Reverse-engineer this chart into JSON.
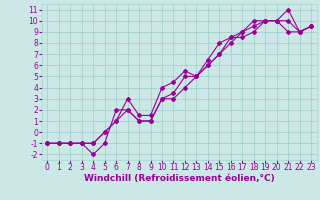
{
  "xlabel": "Windchill (Refroidissement éolien,°C)",
  "ylabel": "",
  "bg_color": "#cce8e6",
  "grid_color": "#a8d4d0",
  "line_color": "#990099",
  "xlim": [
    -0.5,
    23.5
  ],
  "ylim": [
    -2.5,
    11.5
  ],
  "xticks": [
    0,
    1,
    2,
    3,
    4,
    5,
    6,
    7,
    8,
    9,
    10,
    11,
    12,
    13,
    14,
    15,
    16,
    17,
    18,
    19,
    20,
    21,
    22,
    23
  ],
  "yticks": [
    -2,
    -1,
    0,
    1,
    2,
    3,
    4,
    5,
    6,
    7,
    8,
    9,
    10,
    11
  ],
  "line1_x": [
    0,
    1,
    2,
    3,
    4,
    5,
    6,
    7,
    8,
    9,
    10,
    11,
    12,
    13,
    14,
    15,
    16,
    17,
    18,
    19,
    20,
    21,
    22,
    23
  ],
  "line1_y": [
    -1,
    -1,
    -1,
    -1,
    -2,
    -1,
    2,
    2,
    1,
    1,
    3,
    3.5,
    5,
    5,
    6,
    7,
    8.5,
    9,
    10,
    10,
    10,
    11,
    9,
    9.5
  ],
  "line2_x": [
    0,
    1,
    2,
    3,
    4,
    5,
    6,
    7,
    8,
    9,
    10,
    11,
    12,
    13,
    14,
    15,
    16,
    17,
    18,
    19,
    20,
    21,
    22,
    23
  ],
  "line2_y": [
    -1,
    -1,
    -1,
    -1,
    -1,
    0,
    1,
    2,
    1,
    1,
    3,
    3,
    4,
    5,
    6,
    7,
    8,
    9,
    9.5,
    10,
    10,
    9,
    9,
    9.5
  ],
  "line3_x": [
    0,
    1,
    2,
    3,
    4,
    5,
    6,
    7,
    8,
    9,
    10,
    11,
    12,
    13,
    14,
    15,
    16,
    17,
    18,
    19,
    20,
    21,
    22,
    23
  ],
  "line3_y": [
    -1,
    -1,
    -1,
    -1,
    -1,
    0,
    1,
    3,
    1.5,
    1.5,
    4,
    4.5,
    5.5,
    5,
    6.5,
    8,
    8.5,
    8.5,
    9,
    10,
    10,
    10,
    9,
    9.5
  ],
  "tick_fontsize": 5.5,
  "label_fontsize": 6.5
}
